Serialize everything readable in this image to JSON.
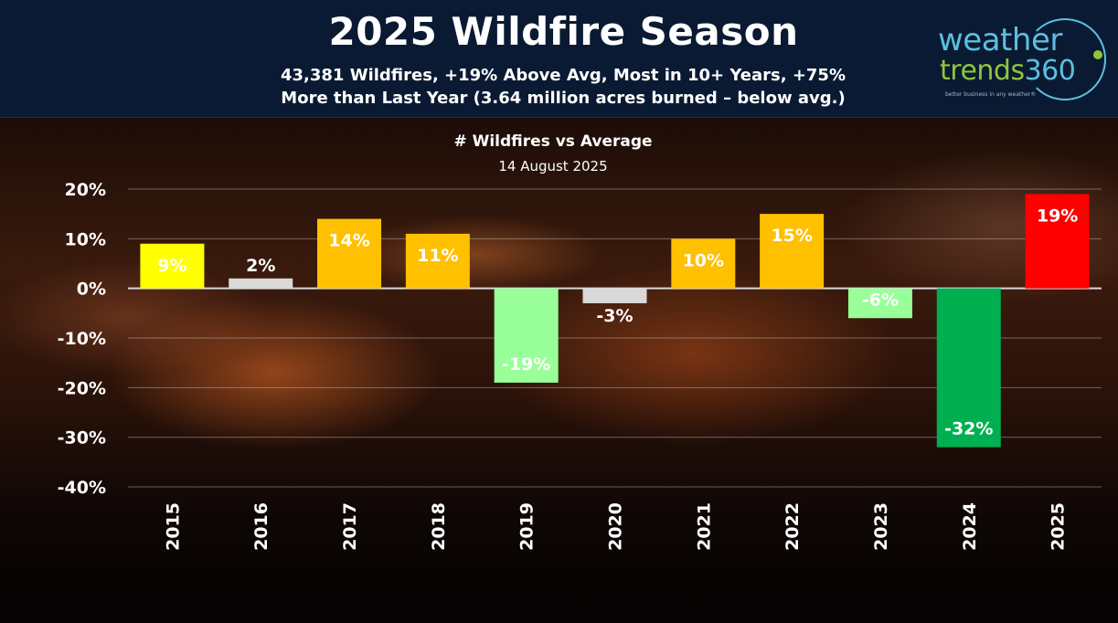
{
  "header": {
    "title": "2025 Wildfire Season",
    "subtitle": "43,381 Wildfires, +19% Above Avg, Most in 10+ Years, +75% More than Last Year (3.64 million acres burned – below avg.)"
  },
  "logo": {
    "line1": "weather",
    "line2_text": "trends",
    "line2_num": "360",
    "tagline": "better business in any weather®"
  },
  "chart_data": {
    "type": "bar",
    "title": "# Wildfires vs Average",
    "subtitle": "14 August 2025",
    "xlabel": "",
    "ylabel": "",
    "ylim": [
      -40,
      20
    ],
    "yticks": [
      20,
      10,
      0,
      -10,
      -20,
      -30,
      -40
    ],
    "ytick_labels": [
      "20%",
      "10%",
      "0%",
      "-10%",
      "-20%",
      "-30%",
      "-40%"
    ],
    "grid": true,
    "categories": [
      "2015",
      "2016",
      "2017",
      "2018",
      "2019",
      "2020",
      "2021",
      "2022",
      "2023",
      "2024",
      "2025"
    ],
    "values": [
      9,
      2,
      14,
      11,
      -19,
      -3,
      10,
      15,
      -6,
      -32,
      19
    ],
    "data_labels": [
      "9%",
      "2%",
      "14%",
      "11%",
      "-19%",
      "-3%",
      "10%",
      "15%",
      "-6%",
      "-32%",
      "19%"
    ],
    "colors": [
      "#ffff00",
      "#d9d9d9",
      "#ffc000",
      "#ffc000",
      "#99ff99",
      "#d9d9d9",
      "#ffc000",
      "#ffc000",
      "#99ff99",
      "#00b050",
      "#ff0000"
    ],
    "label_colors": [
      "#ffffff",
      "#ffffff",
      "#ffffff",
      "#ffffff",
      "#ffffff",
      "#ffffff",
      "#ffffff",
      "#ffffff",
      "#ffffff",
      "#ffffff",
      "#ffffff"
    ]
  }
}
